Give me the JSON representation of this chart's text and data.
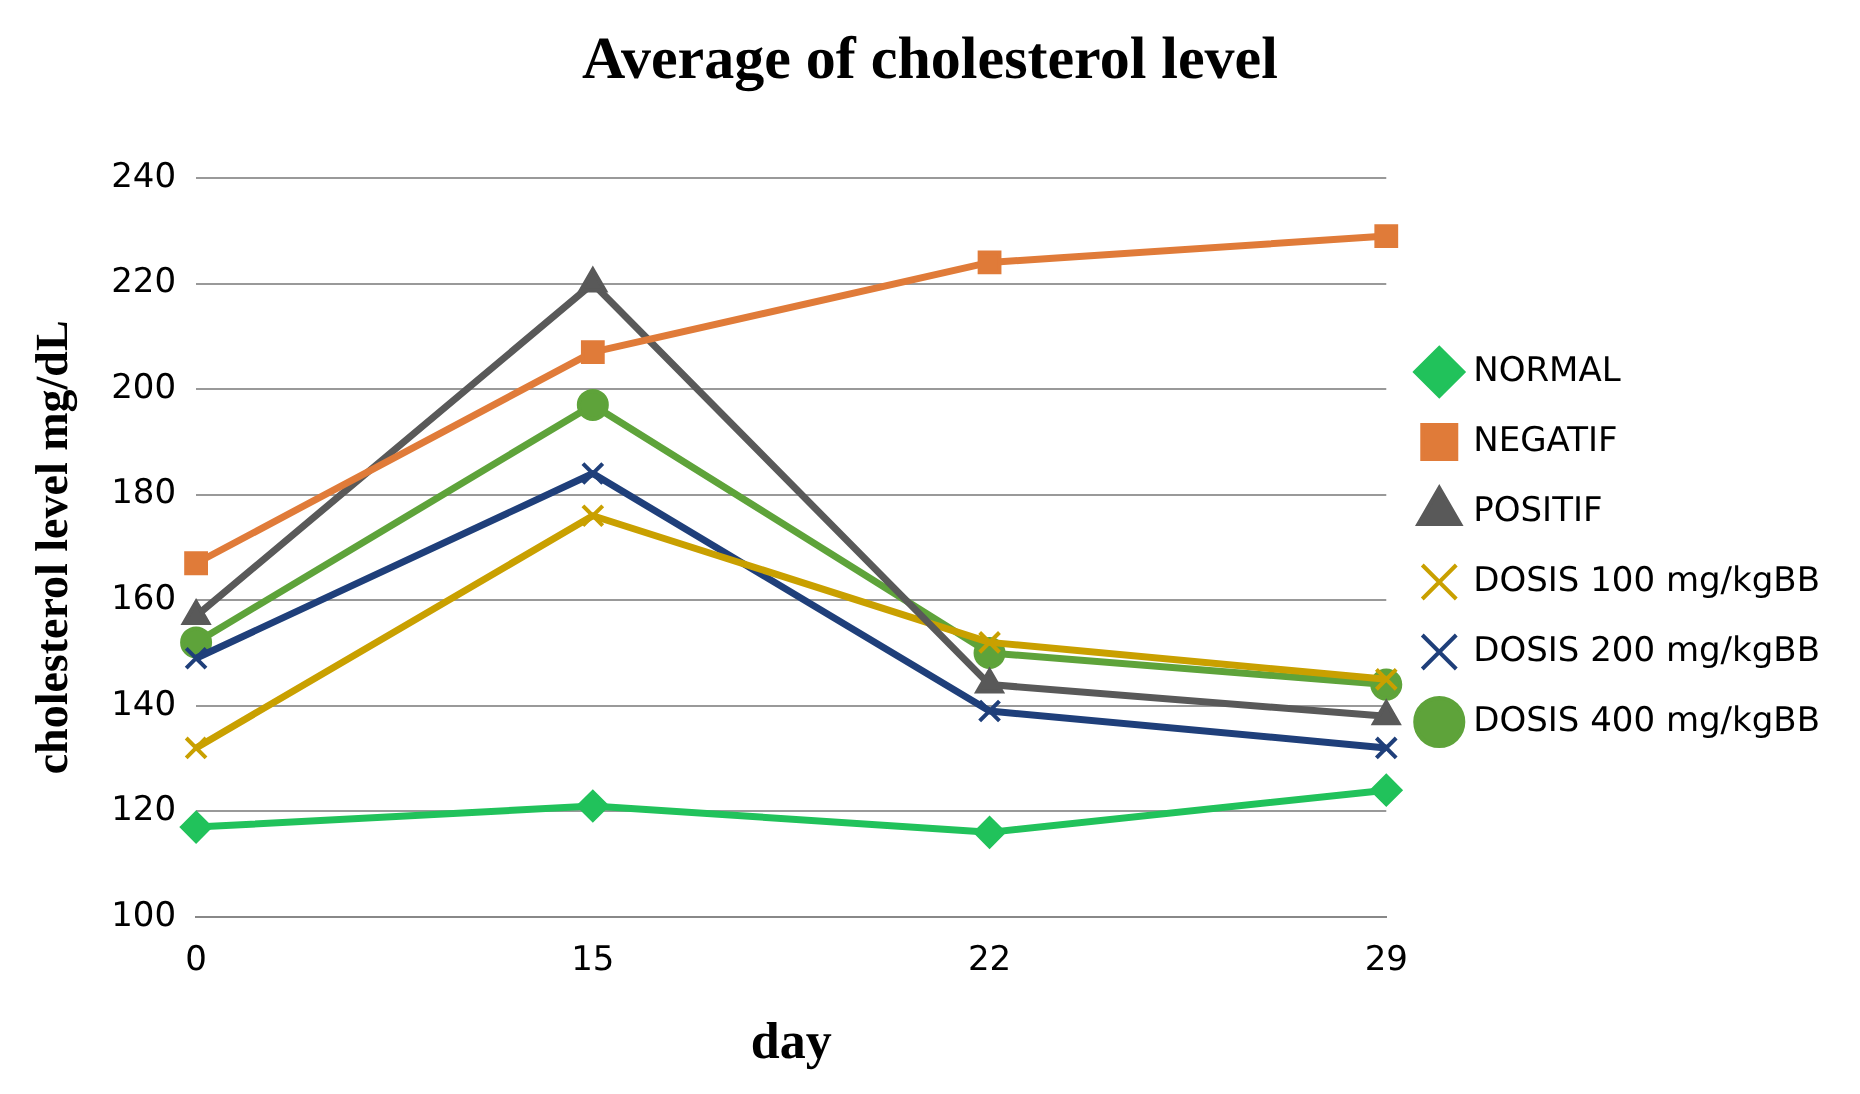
{
  "chart_data": {
    "type": "line",
    "title": "Average of cholesterol level",
    "xlabel": "day",
    "ylabel": "cholesterol level mg/dL",
    "categories": [
      "0",
      "15",
      "22",
      "29"
    ],
    "series": [
      {
        "name": "NORMAL",
        "color": "#21c25b",
        "marker": "diamond",
        "values": [
          117,
          121,
          116,
          124
        ]
      },
      {
        "name": "NEGATIF",
        "color": "#e07b39",
        "marker": "square",
        "values": [
          167,
          207,
          224,
          229
        ]
      },
      {
        "name": "POSITIF",
        "color": "#595959",
        "marker": "triangle",
        "values": [
          157,
          220,
          144,
          138
        ]
      },
      {
        "name": "DOSIS 100 mg/kgBB",
        "color": "#c9a000",
        "marker": "cross",
        "values": [
          132,
          176,
          152,
          145
        ]
      },
      {
        "name": "DOSIS 200 mg/kgBB",
        "color": "#1f3f7a",
        "marker": "cross",
        "values": [
          149,
          184,
          139,
          132
        ]
      },
      {
        "name": "DOSIS 400 mg/kgBB",
        "color": "#5ea33a",
        "marker": "circle",
        "values": [
          152,
          197,
          150,
          144
        ]
      }
    ],
    "ylim": [
      100,
      240
    ],
    "yticks": [
      100,
      120,
      140,
      160,
      180,
      200,
      220,
      240
    ],
    "grid": "y",
    "legend": "right",
    "line_style": "solid"
  }
}
